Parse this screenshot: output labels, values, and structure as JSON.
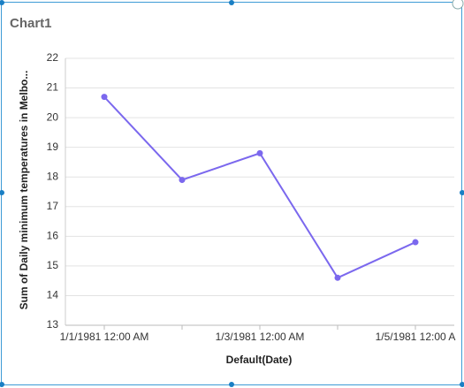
{
  "chart_data": {
    "type": "line",
    "title": "Chart1",
    "x_label": "Default(Date)",
    "y_label": "Sum of Daily minimum temperatures in Melbo...",
    "categories": [
      "1/1/1981 12:00 AM",
      null,
      "1/3/1981 12:00 AM",
      null,
      "1/5/1981 12:00 A"
    ],
    "values": [
      20.7,
      17.9,
      18.8,
      14.6,
      15.8
    ],
    "color": "#7b68ee",
    "ylim": [
      13,
      22
    ],
    "yticks": [
      13,
      14,
      15,
      16,
      17,
      18,
      19,
      20,
      21,
      22
    ],
    "grid": true
  }
}
